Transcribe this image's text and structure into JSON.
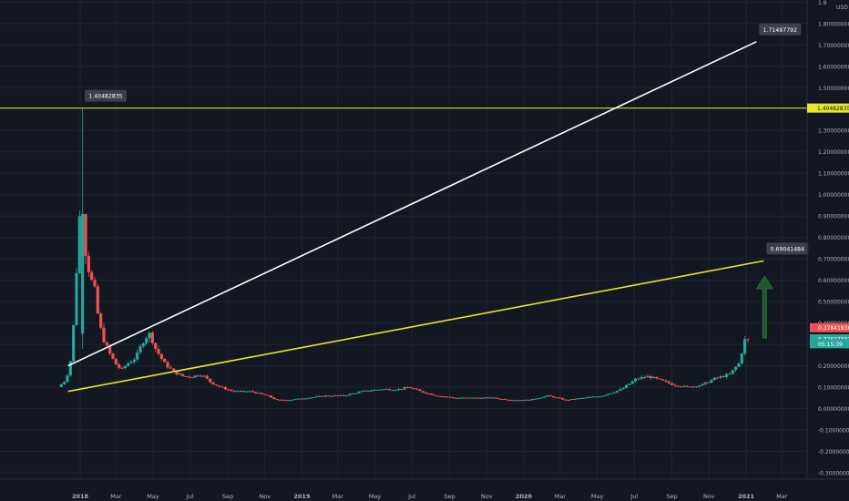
{
  "chart_data": {
    "type": "candlestick",
    "title": "",
    "xlabel": "",
    "ylabel": "",
    "y_axis": {
      "position": "right",
      "currency_label": "USD",
      "ylim": [
        -0.33,
        1.91
      ],
      "ticks": [
        "1.9",
        "1.80000000",
        "1.70000000",
        "1.60000000",
        "1.50000000",
        "1.40000000",
        "1.30000000",
        "1.20000000",
        "1.10000000",
        "1.00000000",
        "0.90000000",
        "0.80000000",
        "0.70000000",
        "0.60000000",
        "0.50000000",
        "0.40000000",
        "0.30000000",
        "0.20000000",
        "0.10000000",
        "0.00000000",
        "-0.10000000",
        "-0.20000000",
        "-0.30000000"
      ],
      "tick_values": [
        1.9,
        1.8,
        1.7,
        1.6,
        1.5,
        1.4,
        1.3,
        1.2,
        1.1,
        1.0,
        0.9,
        0.8,
        0.7,
        0.6,
        0.5,
        0.4,
        0.3,
        0.2,
        0.1,
        0.0,
        -0.1,
        -0.2,
        -0.3
      ]
    },
    "x_axis": {
      "ticks": [
        {
          "label": "2018",
          "date": "2018-01-01",
          "bold": true
        },
        {
          "label": "Mar",
          "date": "2018-03-01",
          "bold": false
        },
        {
          "label": "May",
          "date": "2018-05-01",
          "bold": false
        },
        {
          "label": "Jul",
          "date": "2018-07-01",
          "bold": false
        },
        {
          "label": "Sep",
          "date": "2018-09-01",
          "bold": false
        },
        {
          "label": "Nov",
          "date": "2018-11-01",
          "bold": false
        },
        {
          "label": "2019",
          "date": "2019-01-01",
          "bold": true
        },
        {
          "label": "Mar",
          "date": "2019-03-01",
          "bold": false
        },
        {
          "label": "May",
          "date": "2019-05-01",
          "bold": false
        },
        {
          "label": "Jul",
          "date": "2019-07-01",
          "bold": false
        },
        {
          "label": "Sep",
          "date": "2019-09-01",
          "bold": false
        },
        {
          "label": "Nov",
          "date": "2019-11-01",
          "bold": false
        },
        {
          "label": "2020",
          "date": "2020-01-01",
          "bold": true
        },
        {
          "label": "Mar",
          "date": "2020-03-01",
          "bold": false
        },
        {
          "label": "May",
          "date": "2020-05-01",
          "bold": false
        },
        {
          "label": "Jul",
          "date": "2020-07-01",
          "bold": false
        },
        {
          "label": "Sep",
          "date": "2020-09-01",
          "bold": false
        },
        {
          "label": "Nov",
          "date": "2020-11-01",
          "bold": false
        },
        {
          "label": "2021",
          "date": "2021-01-01",
          "bold": true
        },
        {
          "label": "Mar",
          "date": "2021-03-01",
          "bold": false
        }
      ]
    },
    "price_anchors": [
      [
        "2017-12-01",
        0.1
      ],
      [
        "2017-12-12",
        0.13
      ],
      [
        "2017-12-20",
        0.19
      ],
      [
        "2017-12-28",
        0.45
      ],
      [
        "2018-01-04",
        0.91
      ],
      [
        "2018-01-10",
        0.82
      ],
      [
        "2018-01-16",
        0.72
      ],
      [
        "2018-01-22",
        0.62
      ],
      [
        "2018-01-30",
        0.55
      ],
      [
        "2018-02-06",
        0.4
      ],
      [
        "2018-02-15",
        0.31
      ],
      [
        "2018-02-25",
        0.25
      ],
      [
        "2018-03-05",
        0.21
      ],
      [
        "2018-03-15",
        0.18
      ],
      [
        "2018-03-25",
        0.21
      ],
      [
        "2018-04-08",
        0.24
      ],
      [
        "2018-04-22",
        0.33
      ],
      [
        "2018-05-01",
        0.35
      ],
      [
        "2018-05-10",
        0.28
      ],
      [
        "2018-05-25",
        0.21
      ],
      [
        "2018-06-10",
        0.17
      ],
      [
        "2018-06-25",
        0.15
      ],
      [
        "2018-07-10",
        0.15
      ],
      [
        "2018-07-25",
        0.16
      ],
      [
        "2018-08-10",
        0.12
      ],
      [
        "2018-08-25",
        0.1
      ],
      [
        "2018-09-15",
        0.08
      ],
      [
        "2018-10-15",
        0.08
      ],
      [
        "2018-11-10",
        0.06
      ],
      [
        "2018-11-25",
        0.04
      ],
      [
        "2018-12-15",
        0.04
      ],
      [
        "2019-01-15",
        0.05
      ],
      [
        "2019-02-15",
        0.06
      ],
      [
        "2019-03-15",
        0.06
      ],
      [
        "2019-04-15",
        0.08
      ],
      [
        "2019-05-15",
        0.09
      ],
      [
        "2019-06-15",
        0.09
      ],
      [
        "2019-07-01",
        0.1
      ],
      [
        "2019-07-20",
        0.08
      ],
      [
        "2019-08-15",
        0.06
      ],
      [
        "2019-09-15",
        0.05
      ],
      [
        "2019-10-15",
        0.05
      ],
      [
        "2019-11-15",
        0.05
      ],
      [
        "2019-12-15",
        0.04
      ],
      [
        "2020-01-15",
        0.04
      ],
      [
        "2020-02-15",
        0.06
      ],
      [
        "2020-03-15",
        0.04
      ],
      [
        "2020-04-15",
        0.05
      ],
      [
        "2020-05-15",
        0.06
      ],
      [
        "2020-06-15",
        0.09
      ],
      [
        "2020-07-10",
        0.14
      ],
      [
        "2020-07-30",
        0.15
      ],
      [
        "2020-08-20",
        0.13
      ],
      [
        "2020-09-10",
        0.11
      ],
      [
        "2020-10-01",
        0.1
      ],
      [
        "2020-10-25",
        0.11
      ],
      [
        "2020-11-15",
        0.14
      ],
      [
        "2020-12-10",
        0.16
      ],
      [
        "2020-12-25",
        0.21
      ],
      [
        "2021-01-05",
        0.33
      ]
    ],
    "ath_candle": {
      "date": "2018-01-04",
      "open": 0.35,
      "high": 1.40482835,
      "low": 0.28,
      "close": 0.91
    },
    "annotations": [
      {
        "type": "horizontal_line",
        "color": "#e6e62b",
        "value": 1.4048,
        "label": "1.40482835",
        "price_tag": "1.40482835"
      },
      {
        "type": "trend_line",
        "color": "#ffffff",
        "from": {
          "date": "2017-12-12",
          "value": 0.2
        },
        "to": {
          "date": "2021-01-18",
          "value": 1.71497792
        },
        "label": "1.71497792"
      },
      {
        "type": "trend_line",
        "color": "#e6e62b",
        "from": {
          "date": "2017-12-12",
          "value": 0.08
        },
        "to": {
          "date": "2021-01-30",
          "value": 0.69041484
        },
        "label": "0.69041484"
      },
      {
        "type": "arrow",
        "color": "#1e5b2c",
        "from": {
          "date": "2021-01-18",
          "value": 0.33
        },
        "to": {
          "date": "2021-01-18",
          "value": 0.62
        }
      }
    ],
    "price_tags": [
      {
        "label": "0.37841936",
        "value": 0.378,
        "color": "#ef5350"
      },
      {
        "label": "0.32627337",
        "value": 0.326,
        "color": "#26a69a"
      },
      {
        "label": "05:15:39",
        "value": 0.303,
        "color": "#26a69a"
      }
    ],
    "colors": {
      "background": "#131722",
      "up": "#26a69a",
      "down": "#ef5350",
      "grid": "#1f2431",
      "axis_text": "#b2b5be"
    },
    "grid": true,
    "legend": "none"
  }
}
